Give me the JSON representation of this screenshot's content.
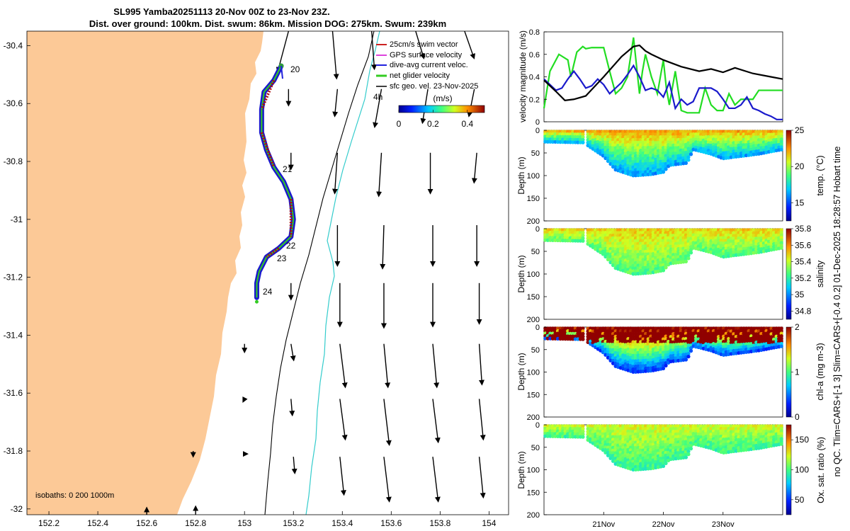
{
  "chart_data": [
    {
      "type": "map",
      "title_line1": "SL995 Yamba20251113 20-Nov 00Z to 23-Nov 23Z.",
      "title_line2": "Dist. over ground: 100km. Dist. swum: 86km. Mission DOG: 275km. Swum: 239km",
      "xlim": [
        152.11,
        154.08
      ],
      "ylim": [
        -32.02,
        -30.35
      ],
      "x_ticks": [
        "152.2",
        "152.4",
        "152.6",
        "152.8",
        "153",
        "153.2",
        "153.4",
        "153.6",
        "153.8",
        "154"
      ],
      "x_tick_values": [
        152.2,
        152.4,
        152.6,
        152.8,
        153.0,
        153.2,
        153.4,
        153.6,
        153.8,
        154.0
      ],
      "y_ticks": [
        "-30.4",
        "-30.6",
        "-30.8",
        "-31",
        "-31.2",
        "-31.4",
        "-31.6",
        "-31.8",
        "-32"
      ],
      "y_tick_values": [
        -30.4,
        -30.6,
        -30.8,
        -31.0,
        -31.2,
        -31.4,
        -31.6,
        -31.8,
        -32.0
      ],
      "legend": [
        {
          "label": "25cm/s swim vector",
          "color": "#cc2222"
        },
        {
          "label": "GPS surface velocity",
          "color": "#dd44dd"
        },
        {
          "label": "dive-avg current veloc.",
          "color": "#2222dd"
        },
        {
          "label": "net glider velocity",
          "color": "#33cc22"
        },
        {
          "label": "sfc geo. vel. 23-Nov-2025",
          "color": "#000000"
        }
      ],
      "colorbar_label": "(m/s)",
      "colorbar_ticks": [
        "0",
        "0.2",
        "0.4"
      ],
      "colorbar_tick_values": [
        0,
        0.2,
        0.4
      ],
      "colorbar_max": 0.5,
      "isobath_label": "isobaths: 0   200  1000m",
      "day_labels": [
        {
          "text": "20",
          "lon": 153.18,
          "lat": -30.46
        },
        {
          "text": "21",
          "lon": 153.16,
          "lat": -30.88
        },
        {
          "text": "22",
          "lon": 153.17,
          "lat": -31.1
        },
        {
          "text": "23",
          "lon": 153.05,
          "lat": -31.14
        },
        {
          "text": "24",
          "lon": 153.08,
          "lat": -31.28
        }
      ],
      "vector_label": "4h",
      "track": [
        [
          153.15,
          -30.47
        ],
        [
          153.12,
          -30.52
        ],
        [
          153.08,
          -30.56
        ],
        [
          153.07,
          -30.62
        ],
        [
          153.07,
          -30.7
        ],
        [
          153.09,
          -30.76
        ],
        [
          153.12,
          -30.82
        ],
        [
          153.16,
          -30.87
        ],
        [
          153.19,
          -30.93
        ],
        [
          153.2,
          -31.0
        ],
        [
          153.19,
          -31.06
        ],
        [
          153.14,
          -31.1
        ],
        [
          153.09,
          -31.13
        ],
        [
          153.06,
          -31.18
        ],
        [
          153.05,
          -31.22
        ],
        [
          153.05,
          -31.27
        ]
      ],
      "geo_vectors": [
        {
          "lon": 153.18,
          "lat": -30.35,
          "u": -0.08,
          "v": -0.3
        },
        {
          "lon": 153.36,
          "lat": -30.35,
          "u": 0.03,
          "v": -0.35
        },
        {
          "lon": 153.52,
          "lat": -30.35,
          "u": 0.02,
          "v": -0.28
        },
        {
          "lon": 153.7,
          "lat": -30.35,
          "u": 0.06,
          "v": -0.2
        },
        {
          "lon": 153.9,
          "lat": -30.35,
          "u": 0.07,
          "v": -0.2
        },
        {
          "lon": 153.18,
          "lat": -30.55,
          "u": 0.0,
          "v": -0.12
        },
        {
          "lon": 153.38,
          "lat": -30.55,
          "u": -0.02,
          "v": -0.2
        },
        {
          "lon": 153.56,
          "lat": -30.55,
          "u": -0.05,
          "v": -0.28
        },
        {
          "lon": 153.75,
          "lat": -30.55,
          "u": -0.04,
          "v": -0.25
        },
        {
          "lon": 153.94,
          "lat": -30.55,
          "u": -0.04,
          "v": -0.2
        },
        {
          "lon": 153.19,
          "lat": -30.77,
          "u": 0.0,
          "v": -0.12
        },
        {
          "lon": 153.38,
          "lat": -30.77,
          "u": -0.02,
          "v": -0.3
        },
        {
          "lon": 153.56,
          "lat": -30.77,
          "u": -0.02,
          "v": -0.32
        },
        {
          "lon": 153.76,
          "lat": -30.77,
          "u": 0.0,
          "v": -0.3
        },
        {
          "lon": 153.95,
          "lat": -30.77,
          "u": -0.02,
          "v": -0.22
        },
        {
          "lon": 153.38,
          "lat": -31.02,
          "u": 0.0,
          "v": -0.3
        },
        {
          "lon": 153.57,
          "lat": -31.02,
          "u": -0.01,
          "v": -0.32
        },
        {
          "lon": 153.77,
          "lat": -31.02,
          "u": 0.0,
          "v": -0.3
        },
        {
          "lon": 153.95,
          "lat": -31.02,
          "u": 0.0,
          "v": -0.3
        },
        {
          "lon": 153.19,
          "lat": -31.22,
          "u": 0.0,
          "v": -0.12
        },
        {
          "lon": 153.39,
          "lat": -31.22,
          "u": 0.0,
          "v": -0.32
        },
        {
          "lon": 153.57,
          "lat": -31.22,
          "u": 0.0,
          "v": -0.33
        },
        {
          "lon": 153.77,
          "lat": -31.22,
          "u": 0.0,
          "v": -0.32
        },
        {
          "lon": 153.96,
          "lat": -31.22,
          "u": 0.0,
          "v": -0.3
        },
        {
          "lon": 153.0,
          "lat": -31.43,
          "u": 0.0,
          "v": -0.06
        },
        {
          "lon": 153.19,
          "lat": -31.43,
          "u": 0.02,
          "v": -0.12
        },
        {
          "lon": 153.39,
          "lat": -31.43,
          "u": 0.04,
          "v": -0.32
        },
        {
          "lon": 153.57,
          "lat": -31.43,
          "u": 0.03,
          "v": -0.32
        },
        {
          "lon": 153.77,
          "lat": -31.43,
          "u": 0.03,
          "v": -0.32
        },
        {
          "lon": 153.96,
          "lat": -31.43,
          "u": 0.02,
          "v": -0.3
        },
        {
          "lon": 153.0,
          "lat": -31.62,
          "u": -0.01,
          "v": -0.02
        },
        {
          "lon": 153.19,
          "lat": -31.62,
          "u": 0.01,
          "v": -0.12
        },
        {
          "lon": 153.39,
          "lat": -31.62,
          "u": 0.04,
          "v": -0.3
        },
        {
          "lon": 153.57,
          "lat": -31.62,
          "u": 0.04,
          "v": -0.34
        },
        {
          "lon": 153.77,
          "lat": -31.62,
          "u": 0.04,
          "v": -0.32
        },
        {
          "lon": 153.96,
          "lat": -31.62,
          "u": 0.03,
          "v": -0.3
        },
        {
          "lon": 152.79,
          "lat": -31.8,
          "u": 0.0,
          "v": -0.04
        },
        {
          "lon": 153.0,
          "lat": -31.81,
          "u": 0.02,
          "v": 0.0
        },
        {
          "lon": 153.2,
          "lat": -31.82,
          "u": 0.01,
          "v": -0.12
        },
        {
          "lon": 153.39,
          "lat": -31.82,
          "u": 0.03,
          "v": -0.28
        },
        {
          "lon": 153.57,
          "lat": -31.82,
          "u": 0.04,
          "v": -0.33
        },
        {
          "lon": 153.77,
          "lat": -31.82,
          "u": 0.04,
          "v": -0.33
        },
        {
          "lon": 153.96,
          "lat": -31.82,
          "u": 0.03,
          "v": -0.3
        },
        {
          "lon": 152.6,
          "lat": -32.02,
          "u": 0.0,
          "v": 0.05
        },
        {
          "lon": 152.8,
          "lat": -32.02,
          "u": 0.0,
          "v": 0.06
        }
      ]
    },
    {
      "type": "line",
      "ylabel": "velocity magnitude (m/s)",
      "ylim": [
        0,
        0.8
      ],
      "y_ticks": [
        "0",
        "0.2",
        "0.4",
        "0.6",
        "0.8"
      ],
      "y_tick_values": [
        0,
        0.2,
        0.4,
        0.6,
        0.8
      ],
      "x_range_days": [
        20.0,
        24.0
      ],
      "series": [
        {
          "name": "net glider velocity",
          "color": "#22dd22",
          "x": [
            20.0,
            20.1,
            20.25,
            20.4,
            20.45,
            20.55,
            20.65,
            20.7,
            20.8,
            21.0,
            21.1,
            21.2,
            21.3,
            21.4,
            21.5,
            21.6,
            21.65,
            21.7,
            21.8,
            21.9,
            22.0,
            22.05,
            22.1,
            22.2,
            22.3,
            22.4,
            22.5,
            22.6,
            22.7,
            22.8,
            22.9,
            23.0,
            23.1,
            23.2,
            23.3,
            23.5,
            23.6,
            23.8,
            23.9,
            24.0
          ],
          "values": [
            0.12,
            0.45,
            0.6,
            0.55,
            0.4,
            0.62,
            0.67,
            0.65,
            0.66,
            0.66,
            0.45,
            0.25,
            0.3,
            0.4,
            0.75,
            0.25,
            0.45,
            0.6,
            0.4,
            0.25,
            0.55,
            0.3,
            0.15,
            0.45,
            0.1,
            0.08,
            0.08,
            0.08,
            0.3,
            0.15,
            0.1,
            0.1,
            0.25,
            0.15,
            0.2,
            0.2,
            0.28,
            0.28,
            0.28,
            0.28
          ]
        },
        {
          "name": "dive-avg current",
          "color": "#1a1acc",
          "x": [
            20.0,
            20.1,
            20.2,
            20.3,
            20.4,
            20.5,
            20.6,
            20.7,
            20.8,
            20.9,
            21.0,
            21.1,
            21.2,
            21.3,
            21.4,
            21.5,
            21.6,
            21.7,
            21.8,
            21.9,
            22.0,
            22.1,
            22.2,
            22.3,
            22.4,
            22.5,
            22.6,
            22.7,
            22.8,
            22.9,
            23.0,
            23.1,
            23.2,
            23.3,
            23.4,
            23.5,
            23.6,
            23.7,
            23.8,
            23.9,
            24.0
          ],
          "values": [
            0.38,
            0.33,
            0.28,
            0.3,
            0.38,
            0.45,
            0.38,
            0.3,
            0.32,
            0.38,
            0.33,
            0.25,
            0.3,
            0.35,
            0.42,
            0.5,
            0.4,
            0.28,
            0.3,
            0.28,
            0.22,
            0.35,
            0.12,
            0.2,
            0.15,
            0.18,
            0.3,
            0.3,
            0.3,
            0.27,
            0.2,
            0.12,
            0.12,
            0.15,
            0.22,
            0.12,
            0.1,
            0.07,
            0.05,
            0.02,
            0.02
          ]
        },
        {
          "name": "sfc geo. vel.",
          "color": "#000000",
          "x": [
            20.0,
            20.2,
            20.35,
            20.5,
            20.7,
            21.0,
            21.3,
            21.5,
            21.6,
            21.7,
            21.8,
            22.0,
            22.3,
            22.6,
            22.8,
            23.0,
            23.2,
            23.5,
            23.8,
            24.0
          ],
          "values": [
            0.37,
            0.27,
            0.19,
            0.2,
            0.23,
            0.4,
            0.58,
            0.67,
            0.68,
            0.63,
            0.6,
            0.55,
            0.49,
            0.45,
            0.47,
            0.44,
            0.48,
            0.43,
            0.4,
            0.38
          ]
        }
      ]
    },
    {
      "type": "heatmap",
      "ylabel": "Depth (m)",
      "colorbar_label": "temp. (°C)",
      "ylim": [
        0,
        200
      ],
      "y_ticks": [
        "0",
        "50",
        "100",
        "150",
        "200"
      ],
      "y_tick_values": [
        0,
        50,
        100,
        150,
        200
      ],
      "cb_ticks": [
        "15",
        "20",
        "25"
      ],
      "cb_tick_values": [
        15,
        20,
        25
      ],
      "cb_range": [
        12.5,
        25
      ],
      "surface_value": 22.5,
      "deep_value": 16.0
    },
    {
      "type": "heatmap",
      "ylabel": "Depth (m)",
      "colorbar_label": "salinity",
      "ylim": [
        0,
        200
      ],
      "y_ticks": [
        "0",
        "50",
        "100",
        "150",
        "200"
      ],
      "y_tick_values": [
        0,
        50,
        100,
        150,
        200
      ],
      "cb_ticks": [
        "34.8",
        "35",
        "35.2",
        "35.4",
        "35.6",
        "35.8"
      ],
      "cb_tick_values": [
        34.8,
        35.0,
        35.2,
        35.4,
        35.6,
        35.8
      ],
      "cb_range": [
        34.7,
        35.8
      ],
      "surface_value": 35.5,
      "deep_value": 35.25
    },
    {
      "type": "heatmap",
      "ylabel": "Depth (m)",
      "colorbar_label": "chl-a (mg m-3)",
      "ylim": [
        0,
        200
      ],
      "y_ticks": [
        "0",
        "50",
        "100",
        "150",
        "200"
      ],
      "y_tick_values": [
        0,
        50,
        100,
        150,
        200
      ],
      "cb_ticks": [
        "0",
        "1",
        "2"
      ],
      "cb_tick_values": [
        0,
        1,
        2
      ],
      "cb_range": [
        0,
        2
      ],
      "surface_value": 2.0,
      "deep_value": 0.3
    },
    {
      "type": "heatmap",
      "ylabel": "Depth (m)",
      "colorbar_label": "Ox. sat. ratio (%)",
      "ylim": [
        0,
        200
      ],
      "y_ticks": [
        "0",
        "50",
        "100",
        "150",
        "200"
      ],
      "y_tick_values": [
        0,
        50,
        100,
        150,
        200
      ],
      "cb_ticks": [
        "50",
        "100",
        "150"
      ],
      "cb_tick_values": [
        50,
        100,
        150
      ],
      "cb_range": [
        25,
        175
      ],
      "surface_value": 125,
      "deep_value": 95,
      "x_ticks": [
        "21Nov",
        "22Nov",
        "23Nov"
      ],
      "x_tick_days": [
        21.0,
        22.0,
        23.0
      ]
    }
  ],
  "section_x_range_days": [
    20.0,
    24.0
  ],
  "section_gaps_days": [
    [
      20.66,
      20.7
    ],
    [
      23.4,
      23.42
    ]
  ],
  "section_bottom_depth": [
    [
      20.0,
      28
    ],
    [
      20.66,
      30
    ],
    [
      21.0,
      60
    ],
    [
      21.2,
      90
    ],
    [
      21.5,
      103
    ],
    [
      21.8,
      100
    ],
    [
      22.0,
      95
    ],
    [
      22.1,
      80
    ],
    [
      22.4,
      75
    ],
    [
      22.5,
      45
    ],
    [
      22.8,
      55
    ],
    [
      23.0,
      65
    ],
    [
      23.3,
      60
    ],
    [
      23.6,
      55
    ],
    [
      24.0,
      45
    ]
  ],
  "side_note": "no QC. Tlim=CARS+[-1 3] Slim=CARS+[-0.4 0.2] 01-Dec-2025 18:28:57 Hobart time"
}
